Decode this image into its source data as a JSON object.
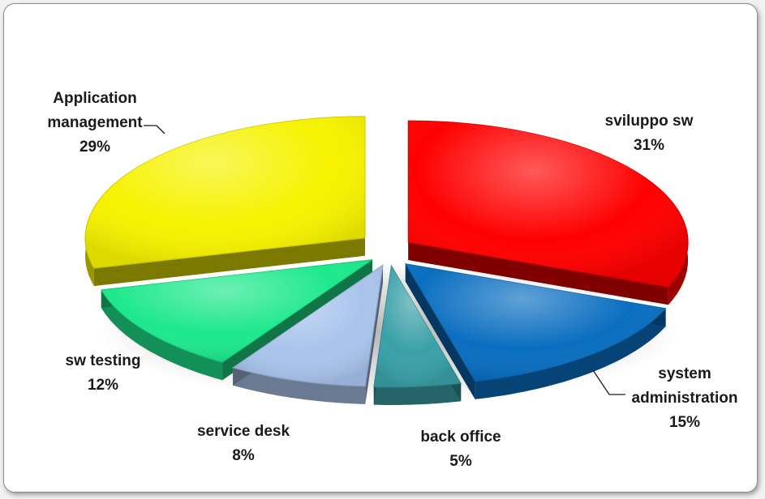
{
  "chart_data": {
    "type": "pie",
    "style": "3d-exploded",
    "slices": [
      {
        "name": "sviluppo sw",
        "value": 31,
        "label": "31%",
        "color": "#ff0000"
      },
      {
        "name": "system administration",
        "value": 15,
        "label": "15%",
        "color": "#0a6ec0"
      },
      {
        "name": "back office",
        "value": 5,
        "label": "5%",
        "color": "#3aa0a8"
      },
      {
        "name": "service desk",
        "value": 8,
        "label": "8%",
        "color": "#a9c4ec"
      },
      {
        "name": "sw testing",
        "value": 12,
        "label": "12%",
        "color": "#1de88c"
      },
      {
        "name": "Application management",
        "value": 29,
        "label": "29%",
        "color": "#f6f200"
      }
    ],
    "legend": "none",
    "title": ""
  }
}
